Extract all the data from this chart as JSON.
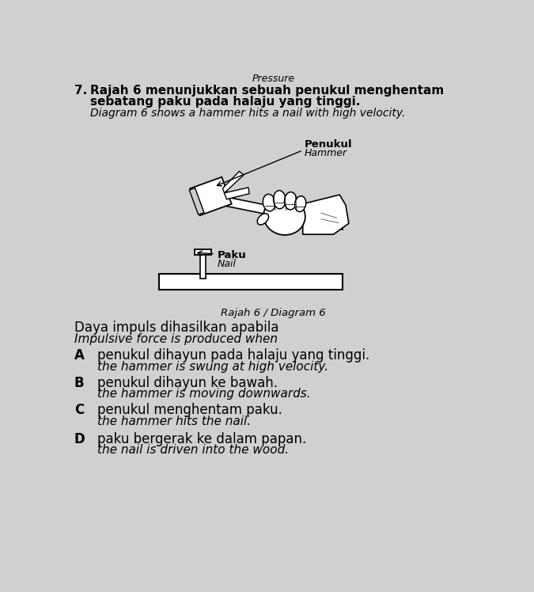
{
  "background_color": "#d0d0d0",
  "top_text": "Pressure",
  "question_number": "7.",
  "question_malay_1": "Rajah 6 menunjukkan sebuah penukul menghentam",
  "question_malay_2": "sebatang paku pada halaju yang tinggi.",
  "question_english": "Diagram 6 shows a hammer hits a nail with high velocity.",
  "diagram_label_malay": "Penukul",
  "diagram_label_english": "Hammer",
  "nail_label_malay": "Paku",
  "nail_label_english": "Nail",
  "diagram_caption": "Rajah 6 / Diagram 6",
  "question_stem_malay": "Daya impuls dihasilkan apabila",
  "question_stem_english": "Impulsive force is produced when",
  "options": [
    {
      "letter": "A",
      "malay": "penukul dihayun pada halaju yang tinggi.",
      "english": "the hammer is swung at high velocity."
    },
    {
      "letter": "B",
      "malay": "penukul dihayun ke bawah.",
      "english": "the hammer is moving downwards."
    },
    {
      "letter": "C",
      "malay": "penukul menghentam paku.",
      "english": "the hammer hits the nail."
    },
    {
      "letter": "D",
      "malay": "paku bergerak ke dalam papan.",
      "english": "the nail is driven into the wood."
    }
  ]
}
